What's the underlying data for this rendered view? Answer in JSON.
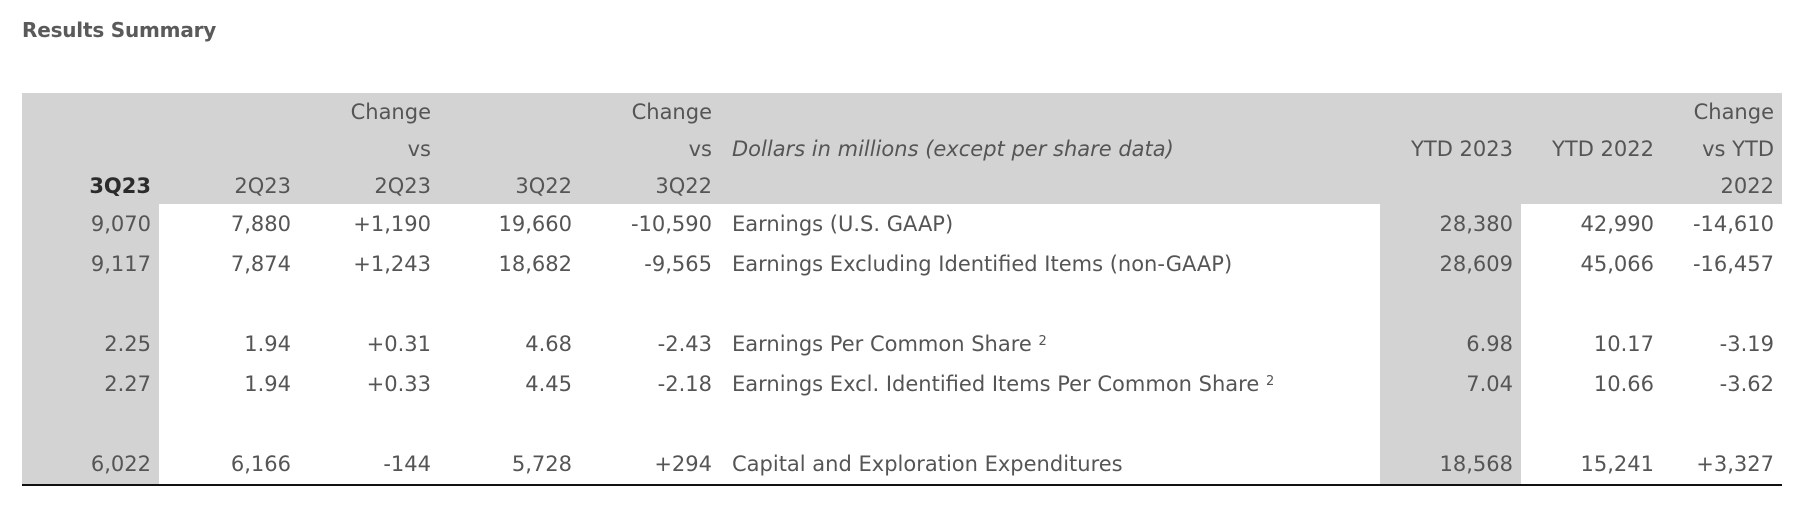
{
  "title": "Results Summary",
  "header": {
    "q_curr": "3Q23",
    "q_prev": "2Q23",
    "q_yago": "3Q22",
    "chg_word": "Change",
    "vs_word": "vs",
    "chg_prev_col": "2Q23",
    "chg_yago_col": "3Q22",
    "description": "Dollars in millions (except per share data)",
    "ytd_curr": "YTD 2023",
    "ytd_prev": "YTD 2022",
    "chg_ytd_top": "Change",
    "chg_ytd_mid": "vs YTD",
    "chg_ytd_bottom": "2022"
  },
  "rows": [
    {
      "q3_23": "9,070",
      "q2_23": "7,880",
      "chg_q2": "+1,190",
      "q3_22": "19,660",
      "chg_q3": "-10,590",
      "label": "Earnings (U.S. GAAP)",
      "sup": "",
      "ytd23": "28,380",
      "ytd22": "42,990",
      "chg_ytd": "-14,610"
    },
    {
      "q3_23": "9,117",
      "q2_23": "7,874",
      "chg_q2": "+1,243",
      "q3_22": "18,682",
      "chg_q3": "-9,565",
      "label": "Earnings Excluding Identified Items (non-GAAP)",
      "sup": "",
      "ytd23": "28,609",
      "ytd22": "45,066",
      "chg_ytd": "-16,457"
    },
    {
      "q3_23": "2.25",
      "q2_23": "1.94",
      "chg_q2": "+0.31",
      "q3_22": "4.68",
      "chg_q3": "-2.43",
      "label": "Earnings Per Common Share",
      "sup": "2",
      "ytd23": "6.98",
      "ytd22": "10.17",
      "chg_ytd": "-3.19"
    },
    {
      "q3_23": "2.27",
      "q2_23": "1.94",
      "chg_q2": "+0.33",
      "q3_22": "4.45",
      "chg_q3": "-2.18",
      "label": "Earnings Excl. Identified Items Per Common Share",
      "sup": "2",
      "ytd23": "7.04",
      "ytd22": "10.66",
      "chg_ytd": "-3.62"
    },
    {
      "q3_23": "6,022",
      "q2_23": "6,166",
      "chg_q2": "-144",
      "q3_22": "5,728",
      "chg_q3": "+294",
      "label": "Capital and Exploration Expenditures",
      "sup": "",
      "ytd23": "18,568",
      "ytd22": "15,241",
      "chg_ytd": "+3,327"
    }
  ],
  "colors": {
    "header_bg": "#d3d3d3",
    "rule": "#111111",
    "text": "#555555"
  }
}
